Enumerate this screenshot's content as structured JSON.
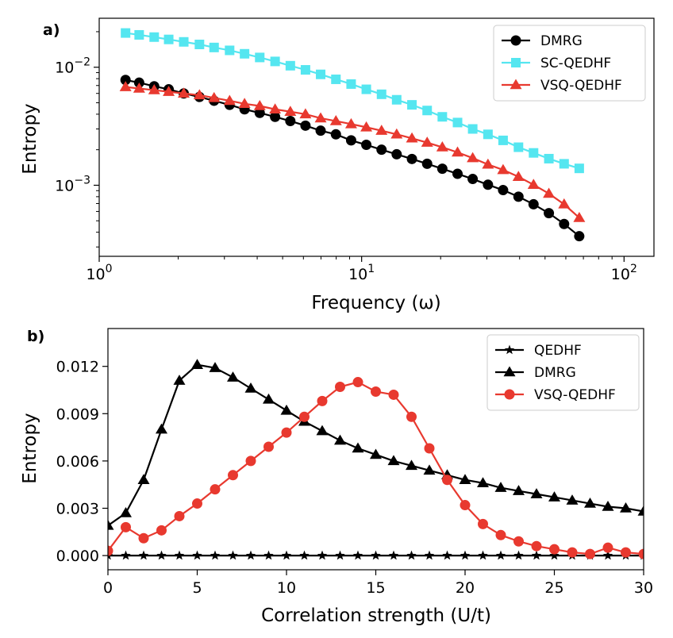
{
  "chart_data": [
    {
      "panel_label": "a)",
      "type": "line",
      "xlabel": "Frequency (ω)",
      "ylabel": "Entropy",
      "xscale": "log",
      "yscale": "log",
      "xlim": [
        1,
        130
      ],
      "ylim": [
        0.00025,
        0.026
      ],
      "xticks": [
        {
          "value": 1,
          "base": "10",
          "exp": "0"
        },
        {
          "value": 10,
          "base": "10",
          "exp": "1"
        },
        {
          "value": 100,
          "base": "10",
          "exp": "2"
        }
      ],
      "yticks": [
        {
          "value": 0.001,
          "base": "10",
          "exp": "−3"
        },
        {
          "value": 0.01,
          "base": "10",
          "exp": "−2"
        }
      ],
      "legend_position": "top-right",
      "x": [
        1.26,
        1.42,
        1.62,
        1.84,
        2.1,
        2.41,
        2.74,
        3.14,
        3.58,
        4.09,
        4.68,
        5.35,
        6.11,
        6.98,
        7.98,
        9.12,
        10.42,
        11.91,
        13.6,
        15.55,
        17.77,
        20.3,
        23.2,
        26.5,
        30.3,
        34.6,
        39.6,
        45.2,
        51.7,
        59.1,
        67.5
      ],
      "series": [
        {
          "name": "DMRG",
          "color": "#000000",
          "marker": "circle",
          "values": [
            0.0078,
            0.0074,
            0.0069,
            0.0065,
            0.006,
            0.0056,
            0.0052,
            0.0048,
            0.0044,
            0.0041,
            0.0038,
            0.0035,
            0.0032,
            0.0029,
            0.0027,
            0.0024,
            0.0022,
            0.002,
            0.00183,
            0.00167,
            0.00152,
            0.00138,
            0.00125,
            0.00113,
            0.00101,
            0.00091,
            0.0008,
            0.00069,
            0.00058,
            0.00047,
            0.00037
          ]
        },
        {
          "name": "SC-QEDHF",
          "color": "#55e6f0",
          "marker": "square",
          "values": [
            0.0195,
            0.0188,
            0.018,
            0.0172,
            0.0164,
            0.0156,
            0.0147,
            0.0139,
            0.013,
            0.0121,
            0.0112,
            0.0103,
            0.0095,
            0.0087,
            0.0079,
            0.0072,
            0.0065,
            0.0059,
            0.0053,
            0.0048,
            0.0043,
            0.0038,
            0.0034,
            0.003,
            0.0027,
            0.0024,
            0.0021,
            0.00188,
            0.00168,
            0.00152,
            0.00139
          ]
        },
        {
          "name": "VSQ-QEDHF",
          "color": "#e8392f",
          "marker": "triangle",
          "values": [
            0.0068,
            0.0066,
            0.0064,
            0.0062,
            0.006,
            0.0058,
            0.0055,
            0.0052,
            0.0049,
            0.0047,
            0.0044,
            0.0042,
            0.004,
            0.0037,
            0.0035,
            0.0033,
            0.0031,
            0.0029,
            0.0027,
            0.0025,
            0.0023,
            0.0021,
            0.0019,
            0.0017,
            0.0015,
            0.00135,
            0.00118,
            0.00101,
            0.00085,
            0.00069,
            0.00053
          ]
        }
      ]
    },
    {
      "panel_label": "b)",
      "type": "line",
      "xlabel": "Correlation strength (U/t)",
      "ylabel": "Entropy",
      "xlim": [
        0,
        30
      ],
      "ylim": [
        -0.0009,
        0.0144
      ],
      "xticks": [
        {
          "value": 0,
          "label": "0"
        },
        {
          "value": 5,
          "label": "5"
        },
        {
          "value": 10,
          "label": "10"
        },
        {
          "value": 15,
          "label": "15"
        },
        {
          "value": 20,
          "label": "20"
        },
        {
          "value": 25,
          "label": "25"
        },
        {
          "value": 30,
          "label": "30"
        }
      ],
      "yticks": [
        {
          "value": 0,
          "label": "0.000"
        },
        {
          "value": 0.003,
          "label": "0.003"
        },
        {
          "value": 0.006,
          "label": "0.006"
        },
        {
          "value": 0.009,
          "label": "0.009"
        },
        {
          "value": 0.012,
          "label": "0.012"
        }
      ],
      "legend_position": "top-right",
      "x": [
        0,
        1,
        2,
        3,
        4,
        5,
        6,
        7,
        8,
        9,
        10,
        11,
        12,
        13,
        14,
        15,
        16,
        17,
        18,
        19,
        20,
        21,
        22,
        23,
        24,
        25,
        26,
        27,
        28,
        29,
        30
      ],
      "series": [
        {
          "name": "QEDHF",
          "color": "#000000",
          "marker": "star",
          "values": [
            0,
            0,
            0,
            0,
            0,
            0,
            0,
            0,
            0,
            0,
            0,
            0,
            0,
            0,
            0,
            0,
            0,
            0,
            0,
            0,
            0,
            0,
            0,
            0,
            0,
            0,
            0,
            0,
            0,
            0,
            0
          ]
        },
        {
          "name": "DMRG",
          "color": "#000000",
          "marker": "triangle",
          "values": [
            0.0019,
            0.0027,
            0.0048,
            0.008,
            0.0111,
            0.0121,
            0.0119,
            0.0113,
            0.0106,
            0.0099,
            0.0092,
            0.0085,
            0.0079,
            0.0073,
            0.0068,
            0.0064,
            0.006,
            0.0057,
            0.0054,
            0.0051,
            0.0048,
            0.0046,
            0.0043,
            0.0041,
            0.0039,
            0.0037,
            0.0035,
            0.0033,
            0.0031,
            0.003,
            0.0028
          ]
        },
        {
          "name": "VSQ-QEDHF",
          "color": "#e8392f",
          "marker": "circle",
          "values": [
            0.0003,
            0.0018,
            0.0011,
            0.0016,
            0.0025,
            0.0033,
            0.0042,
            0.0051,
            0.006,
            0.0069,
            0.0078,
            0.0088,
            0.0098,
            0.0107,
            0.011,
            0.0104,
            0.0102,
            0.0088,
            0.0068,
            0.0048,
            0.0032,
            0.002,
            0.0013,
            0.0009,
            0.0006,
            0.0004,
            0.0002,
            0.0001,
            0.0005,
            0.0002,
            0.0001
          ]
        }
      ]
    }
  ]
}
